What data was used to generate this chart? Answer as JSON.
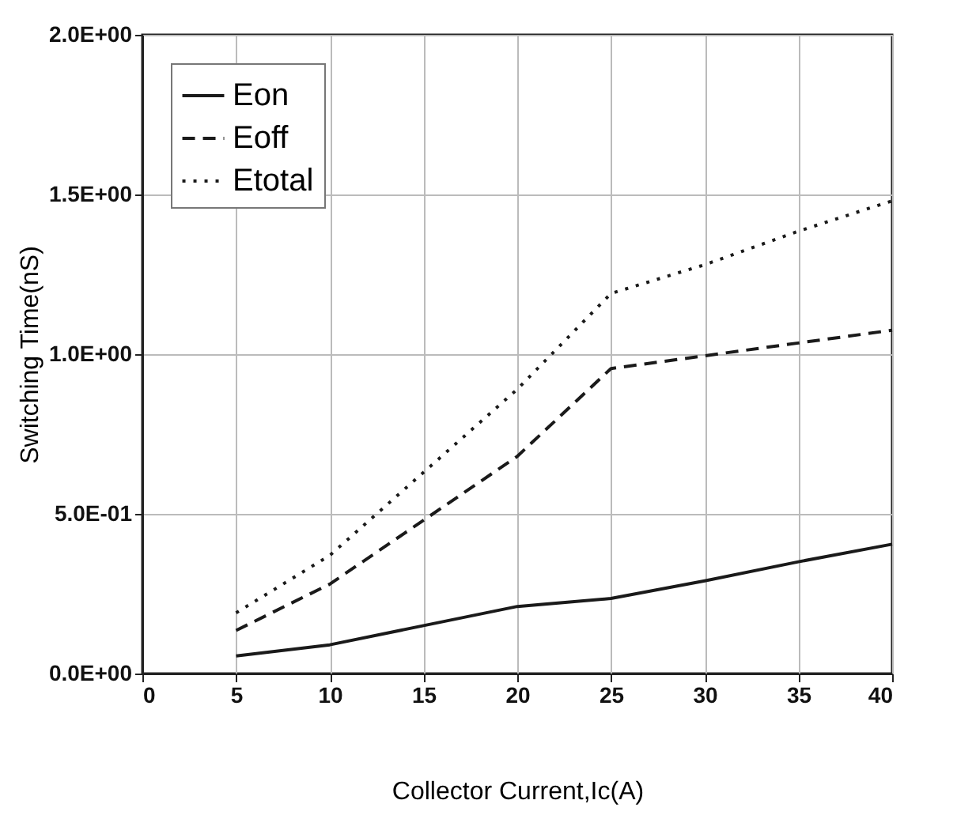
{
  "chart_data": {
    "type": "line",
    "xlabel": "Collector Current,Ic(A)",
    "ylabel": "Switching Time(nS)",
    "x": [
      5,
      10,
      15,
      20,
      25,
      30,
      35,
      40
    ],
    "series": [
      {
        "name": "Eon",
        "color": "#1a1a1a",
        "line_style": "solid",
        "values": [
          0.055,
          0.09,
          0.15,
          0.21,
          0.235,
          0.29,
          0.35,
          0.405
        ]
      },
      {
        "name": "Eoff",
        "color": "#1a1a1a",
        "line_style": "dashed",
        "values": [
          0.135,
          0.28,
          0.48,
          0.68,
          0.955,
          0.995,
          1.035,
          1.075
        ]
      },
      {
        "name": "Etotal",
        "color": "#1a1a1a",
        "line_style": "dotted",
        "values": [
          0.19,
          0.37,
          0.63,
          0.89,
          1.19,
          1.28,
          1.385,
          1.48
        ]
      }
    ],
    "xlim": [
      0,
      40
    ],
    "xticks": [
      0,
      5,
      10,
      15,
      20,
      25,
      30,
      35,
      40
    ],
    "ylim": [
      0,
      2
    ],
    "yticks": [
      {
        "value": 0,
        "label": "0.0E+00"
      },
      {
        "value": 0.5,
        "label": "5.0E-01"
      },
      {
        "value": 1.0,
        "label": "1.0E+00"
      },
      {
        "value": 1.5,
        "label": "1.5E+00"
      },
      {
        "value": 2.0,
        "label": "2.0E+00"
      }
    ],
    "grid": true,
    "legend": "top left",
    "marker": "none"
  }
}
